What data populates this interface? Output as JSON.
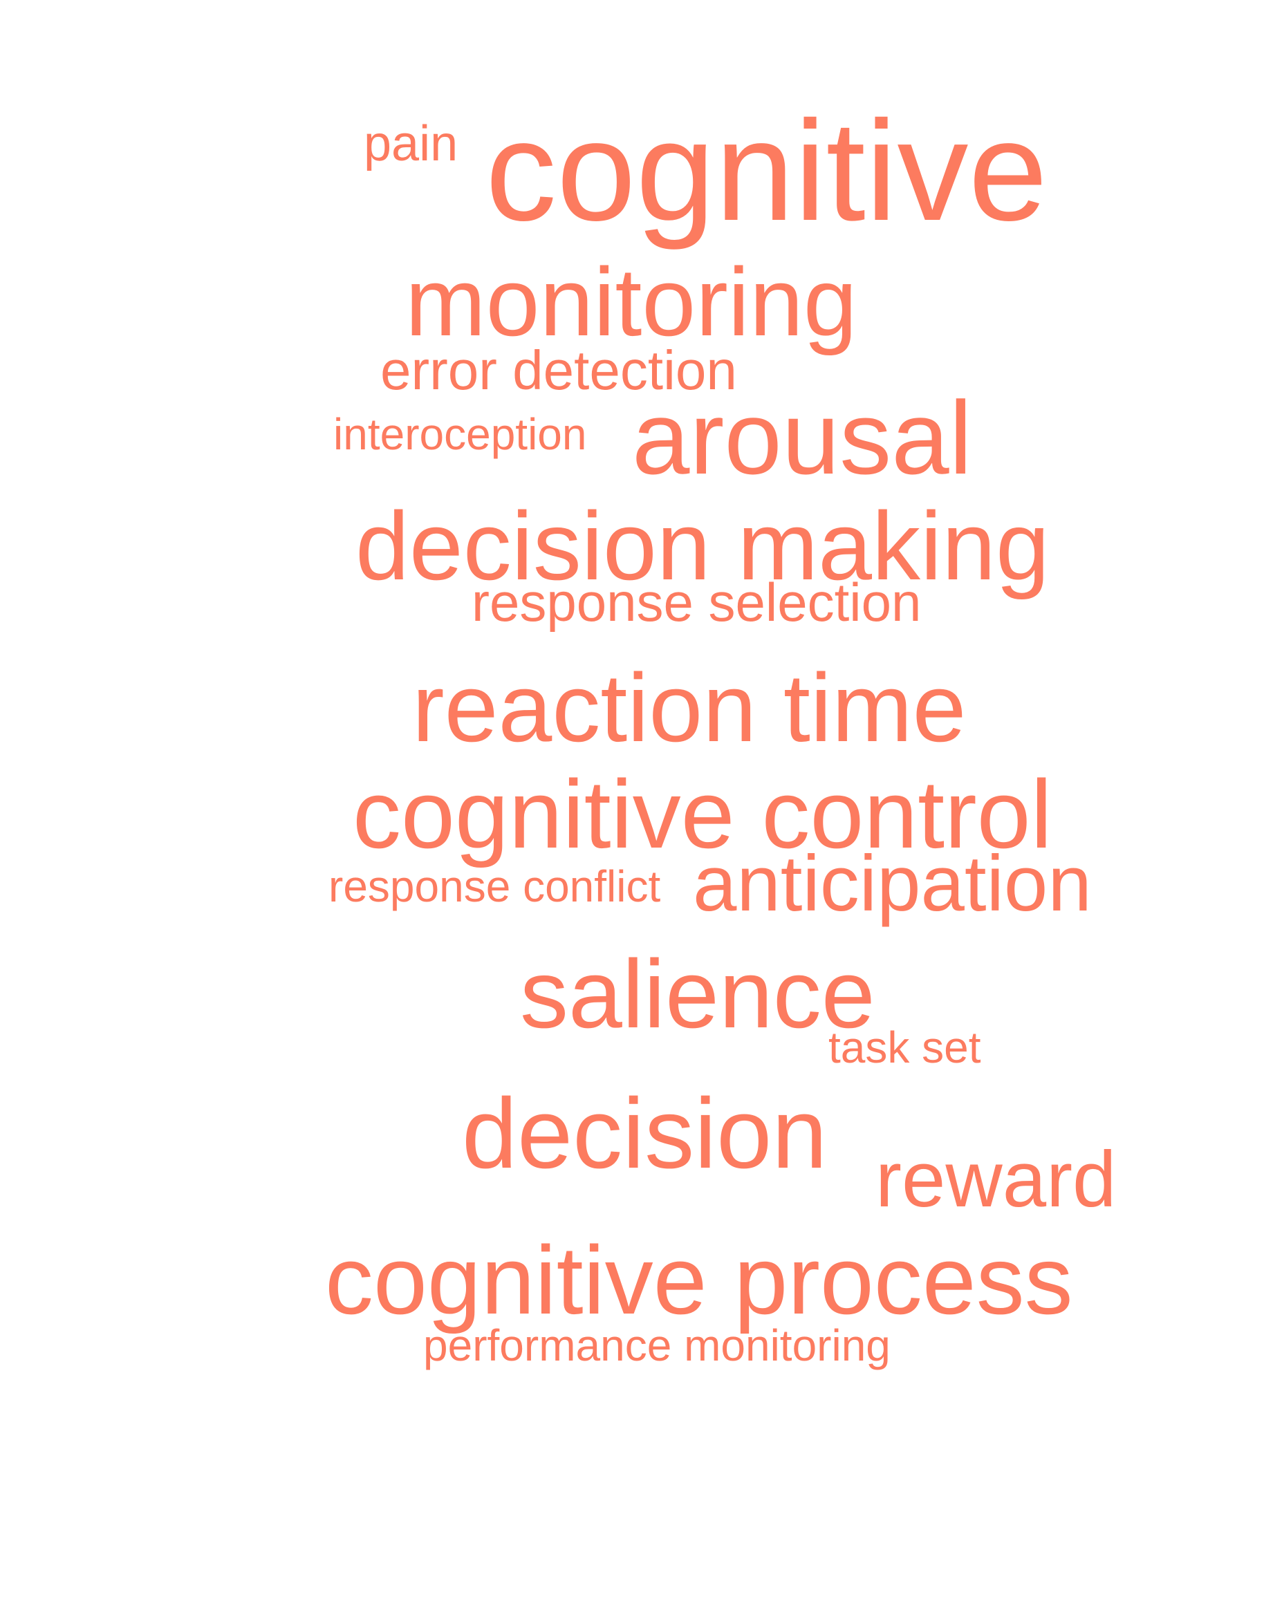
{
  "word_color": "#fc7b5f",
  "background_color": "#ffffff",
  "words": [
    {
      "id": "pain",
      "text": "pain"
    },
    {
      "id": "cognitive",
      "text": "cognitive"
    },
    {
      "id": "monitoring",
      "text": "monitoring"
    },
    {
      "id": "error_detection",
      "text": "error detection"
    },
    {
      "id": "interoception",
      "text": "interoception"
    },
    {
      "id": "arousal",
      "text": "arousal"
    },
    {
      "id": "decision_making",
      "text": "decision making"
    },
    {
      "id": "response_selection",
      "text": "response selection"
    },
    {
      "id": "reaction_time",
      "text": "reaction time"
    },
    {
      "id": "cognitive_control",
      "text": "cognitive control"
    },
    {
      "id": "response_conflict",
      "text": "response conflict"
    },
    {
      "id": "anticipation",
      "text": "anticipation"
    },
    {
      "id": "salience",
      "text": "salience"
    },
    {
      "id": "task_set",
      "text": "task set"
    },
    {
      "id": "decision",
      "text": "decision"
    },
    {
      "id": "reward",
      "text": "reward"
    },
    {
      "id": "cognitive_process",
      "text": "cognitive process"
    },
    {
      "id": "performance_monitoring",
      "text": "performance monitoring"
    }
  ]
}
